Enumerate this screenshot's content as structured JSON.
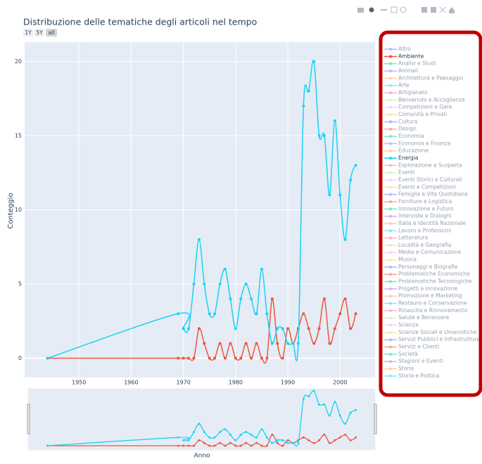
{
  "chart_data": {
    "type": "line",
    "title": "Distribuzione delle tematiche degli articoli nel tempo",
    "xaxis_title": "Anno",
    "yaxis_title": "Conteggio",
    "range_buttons": [
      "1Y",
      "5Y",
      "all"
    ],
    "rangeslider": true,
    "grid": true,
    "line_shape": "spline",
    "legend_position": "right",
    "xlim": [
      1939.6,
      2006.7
    ],
    "ylim": [
      -1.3,
      21.3
    ],
    "xticks": [
      1950,
      1960,
      1970,
      1980,
      1990,
      2000
    ],
    "yticks": [
      0,
      5,
      10,
      15,
      20
    ],
    "x": [
      1944,
      1969,
      1970,
      1971,
      1972,
      1973,
      1974,
      1975,
      1976,
      1977,
      1978,
      1979,
      1980,
      1981,
      1982,
      1983,
      1984,
      1985,
      1986,
      1987,
      1988,
      1989,
      1990,
      1991,
      1992,
      1993,
      1994,
      1995,
      1996,
      1997,
      1998,
      1999,
      2000,
      2001,
      2002,
      2003
    ],
    "series": [
      {
        "name": "Altro",
        "color": "#636efa",
        "visible": "legendonly"
      },
      {
        "name": "Ambiente",
        "color": "#EF553B",
        "visible": true,
        "values": [
          0,
          0,
          0,
          0,
          0,
          2,
          1,
          0,
          0,
          1,
          0,
          1,
          0,
          0,
          1,
          0,
          1,
          0,
          0,
          4,
          1,
          0,
          2,
          1,
          2,
          3,
          2,
          1,
          2,
          4,
          1,
          2,
          3,
          4,
          2,
          3
        ]
      },
      {
        "name": "Analisi e Studi",
        "color": "#00cc96",
        "visible": "legendonly"
      },
      {
        "name": "Animali",
        "color": "#ab63fa",
        "visible": "legendonly"
      },
      {
        "name": "Architettura e Paesaggio",
        "color": "#FFA15A",
        "visible": "legendonly"
      },
      {
        "name": "Arte",
        "color": "#19d3f3",
        "visible": "legendonly"
      },
      {
        "name": "Artigianato",
        "color": "#FF6692",
        "visible": "legendonly"
      },
      {
        "name": "Benvenuto e Accoglienza",
        "color": "#B6E880",
        "visible": "legendonly"
      },
      {
        "name": "Competizioni e Gare",
        "color": "#FF97FF",
        "visible": "legendonly"
      },
      {
        "name": "Comunità e Privati",
        "color": "#FECB52",
        "visible": "legendonly"
      },
      {
        "name": "Cultura",
        "color": "#636efa",
        "visible": "legendonly"
      },
      {
        "name": "Design",
        "color": "#EF553B",
        "visible": "legendonly"
      },
      {
        "name": "Economia",
        "color": "#00cc96",
        "visible": "legendonly"
      },
      {
        "name": "Economia e Finanza",
        "color": "#ab63fa",
        "visible": "legendonly"
      },
      {
        "name": "Educazione",
        "color": "#FFA15A",
        "visible": "legendonly"
      },
      {
        "name": "Energia",
        "color": "#19d3f3",
        "visible": true,
        "values": [
          0,
          3,
          2,
          2,
          5,
          8,
          5,
          3,
          3,
          5,
          6,
          4,
          2,
          4,
          5,
          4,
          3,
          6,
          3,
          1,
          2,
          2,
          1,
          1,
          1,
          17,
          18,
          20,
          15,
          15,
          11,
          16,
          11,
          8,
          12,
          13
        ]
      },
      {
        "name": "Esplorazione e Scoperta",
        "color": "#FF6692",
        "visible": "legendonly"
      },
      {
        "name": "Eventi",
        "color": "#B6E880",
        "visible": "legendonly"
      },
      {
        "name": "Eventi Storici e Culturali",
        "color": "#FF97FF",
        "visible": "legendonly"
      },
      {
        "name": "Eventi e Competizioni",
        "color": "#FECB52",
        "visible": "legendonly"
      },
      {
        "name": "Famiglia e Vita Quotidiana",
        "color": "#636efa",
        "visible": "legendonly"
      },
      {
        "name": "Forniture e Logistica",
        "color": "#EF553B",
        "visible": "legendonly"
      },
      {
        "name": "Innovazione e Futuro",
        "color": "#00cc96",
        "visible": "legendonly"
      },
      {
        "name": "Interviste e Dialoghi",
        "color": "#ab63fa",
        "visible": "legendonly"
      },
      {
        "name": "Italia e Identità Nazionale",
        "color": "#FFA15A",
        "visible": "legendonly"
      },
      {
        "name": "Lavoro e Professioni",
        "color": "#19d3f3",
        "visible": "legendonly"
      },
      {
        "name": "Letteratura",
        "color": "#FF6692",
        "visible": "legendonly"
      },
      {
        "name": "Località e Geografia",
        "color": "#B6E880",
        "visible": "legendonly"
      },
      {
        "name": "Media e Comunicazione",
        "color": "#FF97FF",
        "visible": "legendonly"
      },
      {
        "name": "Musica",
        "color": "#FECB52",
        "visible": "legendonly"
      },
      {
        "name": "Personaggi e Biografie",
        "color": "#636efa",
        "visible": "legendonly"
      },
      {
        "name": "Problematiche Economiche",
        "color": "#EF553B",
        "visible": "legendonly"
      },
      {
        "name": "Problematiche Tecnologiche",
        "color": "#00cc96",
        "visible": "legendonly"
      },
      {
        "name": "Progetti e Innovazione",
        "color": "#ab63fa",
        "visible": "legendonly"
      },
      {
        "name": "Promozione e Marketing",
        "color": "#FFA15A",
        "visible": "legendonly"
      },
      {
        "name": "Restauro e Conservazione",
        "color": "#19d3f3",
        "visible": "legendonly"
      },
      {
        "name": "Rinascita e Rinnovamento",
        "color": "#FF6692",
        "visible": "legendonly"
      },
      {
        "name": "Salute e Benessere",
        "color": "#B6E880",
        "visible": "legendonly"
      },
      {
        "name": "Scienza",
        "color": "#FF97FF",
        "visible": "legendonly"
      },
      {
        "name": "Scienze Sociali e Umanistiche",
        "color": "#FECB52",
        "visible": "legendonly"
      },
      {
        "name": "Servizi Pubblici e Infrastrutture",
        "color": "#636efa",
        "visible": "legendonly"
      },
      {
        "name": "Servizi e Clienti",
        "color": "#EF553B",
        "visible": "legendonly"
      },
      {
        "name": "Società",
        "color": "#00cc96",
        "visible": "legendonly"
      },
      {
        "name": "Stagioni e Eventi",
        "color": "#ab63fa",
        "visible": "legendonly"
      },
      {
        "name": "Storia",
        "color": "#FFA15A",
        "visible": "legendonly"
      },
      {
        "name": "Storia e Politica",
        "color": "#19d3f3",
        "visible": "legendonly"
      }
    ]
  }
}
